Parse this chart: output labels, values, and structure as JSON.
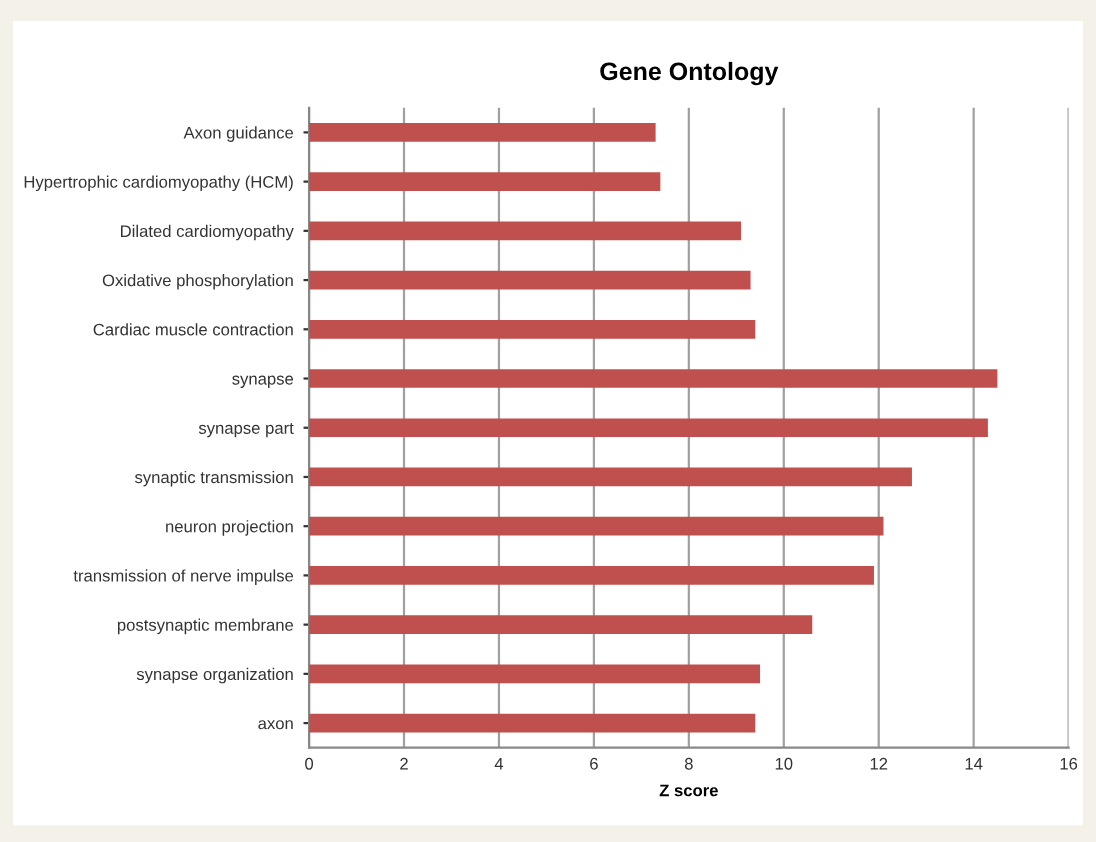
{
  "chart_data": {
    "type": "bar",
    "orientation": "horizontal",
    "title": "Gene Ontology",
    "xlabel": "Z score",
    "categories": [
      "Axon guidance",
      "Hypertrophic cardiomyopathy (HCM)",
      "Dilated cardiomyopathy",
      "Oxidative phosphorylation",
      "Cardiac muscle contraction",
      "synapse",
      "synapse part",
      "synaptic transmission",
      "neuron projection",
      "transmission of nerve impulse",
      "postsynaptic membrane",
      "synapse organization",
      "axon"
    ],
    "values": [
      7.3,
      7.4,
      9.1,
      9.3,
      9.4,
      14.5,
      14.3,
      12.7,
      12.1,
      11.9,
      10.6,
      9.5,
      9.4
    ],
    "color": "#c0504d",
    "xlim": [
      0,
      16
    ],
    "xticks": [
      0,
      2,
      4,
      6,
      8,
      10,
      12,
      14,
      16
    ],
    "grid": "x",
    "legend": false
  }
}
